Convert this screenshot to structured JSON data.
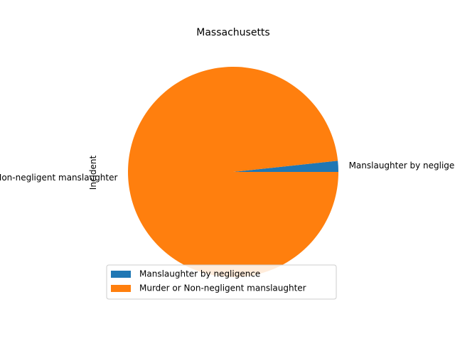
{
  "chart_data": {
    "type": "pie",
    "title": "Massachusetts",
    "ylabel": "Incident",
    "categories": [
      "Manslaughter by negligence",
      "Murder or Non-negligent manslaughter"
    ],
    "values": [
      1.7,
      98.3
    ],
    "colors": [
      "#1f77b4",
      "#ff7f0e"
    ],
    "legend": {
      "position": "lower-center",
      "entries": [
        "Manslaughter by negligence",
        "Murder or Non-negligent manslaughter"
      ]
    }
  }
}
